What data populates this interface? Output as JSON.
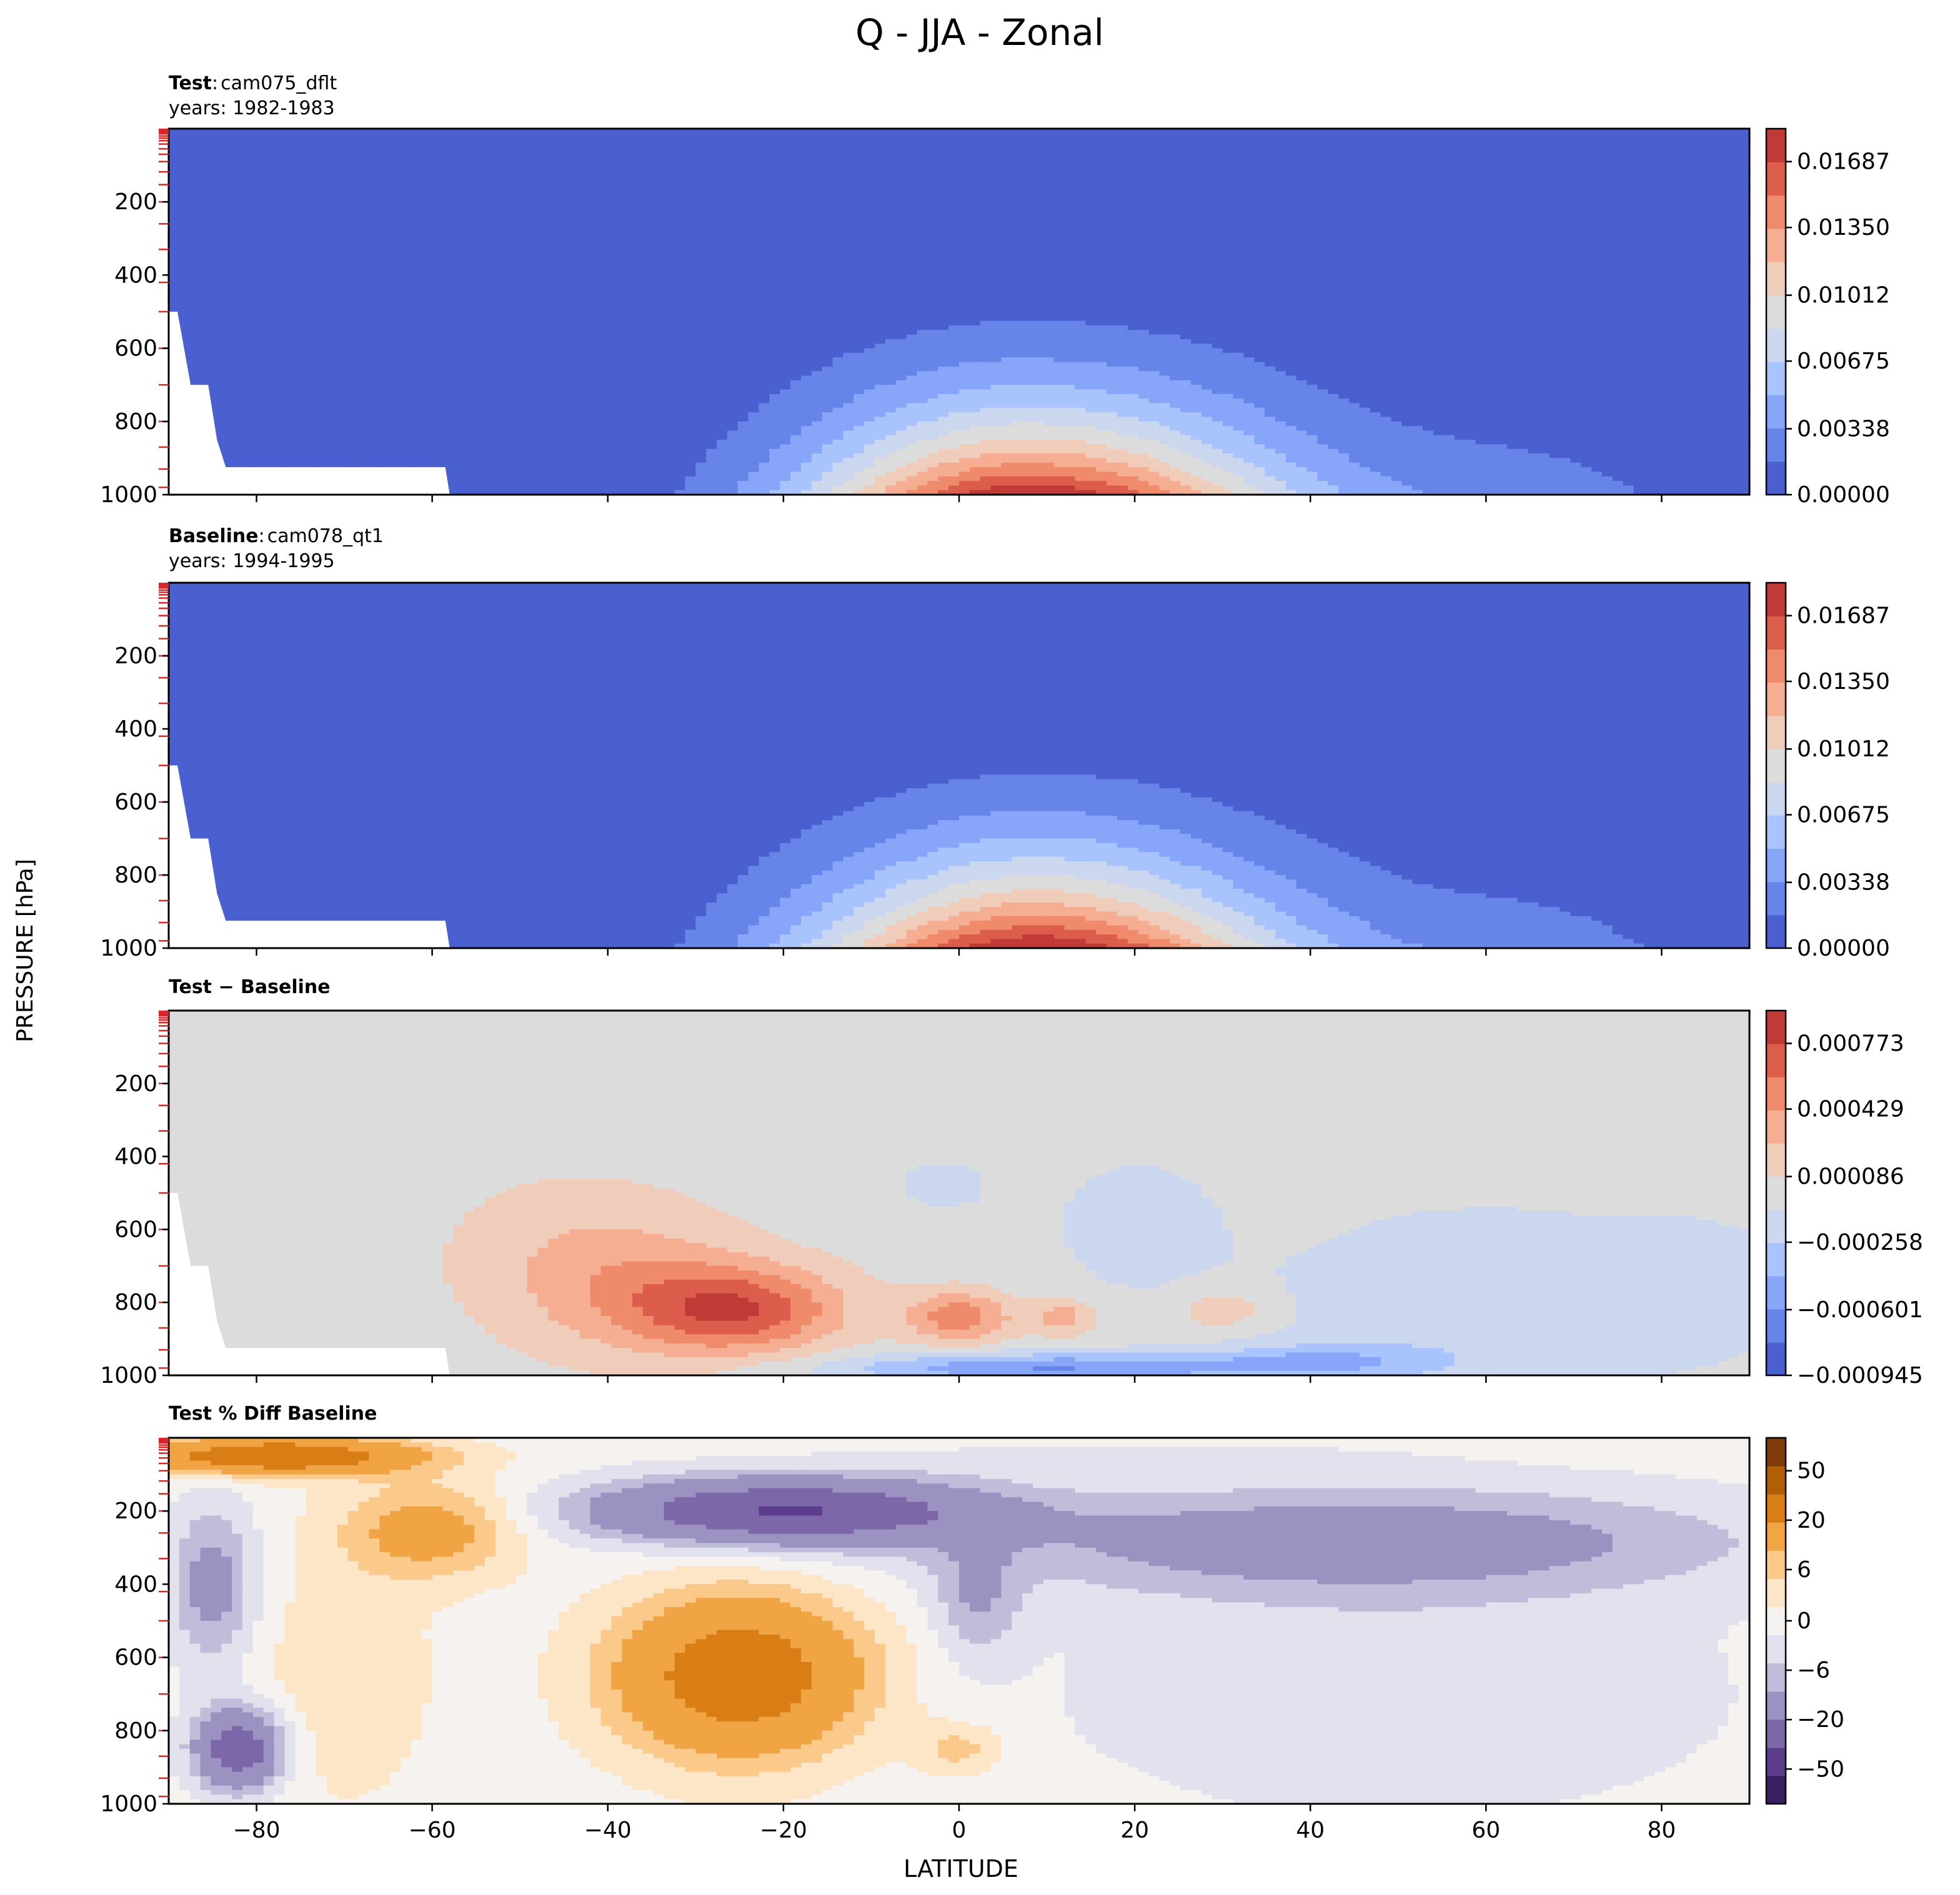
{
  "figure": {
    "title": "Q - JJA - Zonal",
    "xlabel": "LATITUDE",
    "ylabel": "PRESSURE [hPa]"
  },
  "chart_data": [
    {
      "type": "heatmap",
      "header_bold": "Test",
      "header_sep": ":",
      "header_rest": "cam075_dflt",
      "header_years": "years: 1982-1983",
      "xlim": [
        -90,
        90
      ],
      "ylim": [
        1000,
        0
      ],
      "x_ticks": [
        -80,
        -60,
        -40,
        -20,
        0,
        20,
        40,
        60,
        80
      ],
      "y_tick_labels": [
        "200",
        "400",
        "600",
        "800",
        "1000"
      ],
      "colorbar_tick_labels": [
        "0.01687",
        "0.01350",
        "0.01012",
        "0.00675",
        "0.00338",
        "0.00000"
      ],
      "colormap": "coolwarm",
      "field_peak": 0.0185,
      "field_peak_location": {
        "latitude": 8,
        "pressure": 1000
      }
    },
    {
      "type": "heatmap",
      "header_bold": "Baseline",
      "header_sep": ":",
      "header_rest": "cam078_qt1",
      "header_years": "years: 1994-1995",
      "xlim": [
        -90,
        90
      ],
      "ylim": [
        1000,
        0
      ],
      "x_ticks": [
        -80,
        -60,
        -40,
        -20,
        0,
        20,
        40,
        60,
        80
      ],
      "y_tick_labels": [
        "200",
        "400",
        "600",
        "800",
        "1000"
      ],
      "colorbar_tick_labels": [
        "0.01687",
        "0.01350",
        "0.01012",
        "0.00675",
        "0.00338",
        "0.00000"
      ],
      "colormap": "coolwarm",
      "field_peak": 0.0185,
      "field_peak_location": {
        "latitude": 8,
        "pressure": 1000
      }
    },
    {
      "type": "heatmap",
      "header_bold": "Test − Baseline",
      "xlim": [
        -90,
        90
      ],
      "ylim": [
        1000,
        0
      ],
      "x_ticks": [
        -80,
        -60,
        -40,
        -20,
        0,
        20,
        40,
        60,
        80
      ],
      "y_tick_labels": [
        "200",
        "400",
        "600",
        "800",
        "1000"
      ],
      "colorbar_tick_labels": [
        "0.000773",
        "0.000429",
        "0.000086",
        "−0.000258",
        "−0.000601",
        "−0.000945"
      ],
      "colormap": "coolwarm"
    },
    {
      "type": "heatmap",
      "header_bold": "Test % Diff Baseline",
      "xlim": [
        -90,
        90
      ],
      "ylim": [
        1000,
        0
      ],
      "x_ticks": [
        -80,
        -60,
        -40,
        -20,
        0,
        20,
        40,
        60,
        80
      ],
      "x_tick_labels": [
        "−80",
        "−60",
        "−40",
        "−20",
        "0",
        "20",
        "40",
        "60",
        "80"
      ],
      "y_tick_labels": [
        "200",
        "400",
        "600",
        "800",
        "1000"
      ],
      "colorbar_tick_labels": [
        "50",
        "20",
        "6",
        "0",
        "−6",
        "−20",
        "−50"
      ],
      "colormap": "PuOr"
    }
  ],
  "colors": {
    "coolwarm": [
      "#4a5fd0",
      "#6784e8",
      "#87a6fa",
      "#a9c3fd",
      "#cad7ef",
      "#dcdcdc",
      "#f0cdbb",
      "#f6ae93",
      "#ef8a6b",
      "#dc5d4b",
      "#c03a37"
    ],
    "puor": [
      "#3b1f63",
      "#5b3d8c",
      "#7c68a8",
      "#9c92c2",
      "#c0bcda",
      "#e2e1ee",
      "#f6f2f0",
      "#fde6c8",
      "#fbc98a",
      "#f1a443",
      "#d97e14",
      "#b05f06",
      "#7f3b08"
    ],
    "diff_neutral": "#dcdcdc",
    "tick_marks": "#d62728"
  }
}
